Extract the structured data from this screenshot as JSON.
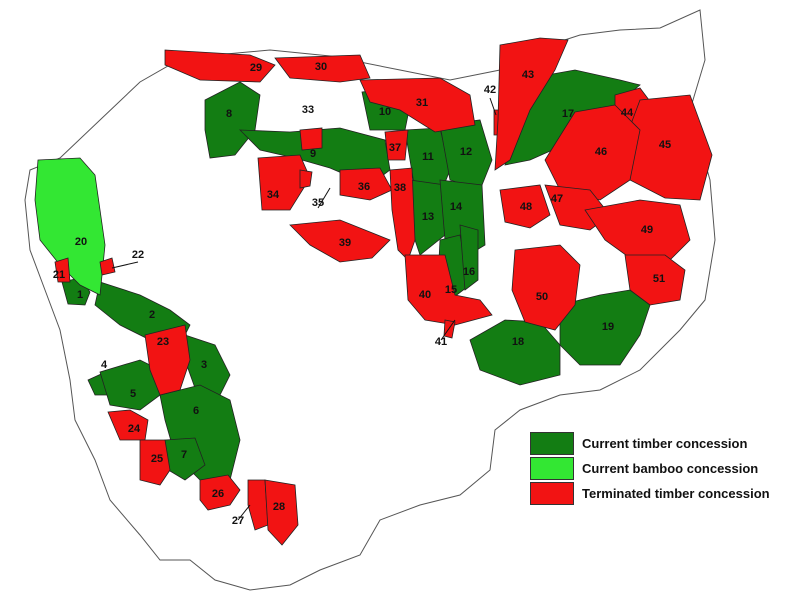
{
  "colors": {
    "current_timber": "#137d13",
    "current_bamboo": "#33e733",
    "terminated_timber": "#f21313"
  },
  "legend": {
    "items": [
      {
        "label": "Current timber concession",
        "color": "#137d13"
      },
      {
        "label": "Current bamboo concession",
        "color": "#33e733"
      },
      {
        "label": "Terminated timber concession",
        "color": "#f21313"
      }
    ]
  },
  "concessions": [
    {
      "id": "1",
      "status": "current_timber"
    },
    {
      "id": "2",
      "status": "current_timber"
    },
    {
      "id": "3",
      "status": "current_timber"
    },
    {
      "id": "4",
      "status": "current_timber"
    },
    {
      "id": "5",
      "status": "current_timber"
    },
    {
      "id": "6",
      "status": "current_timber"
    },
    {
      "id": "7",
      "status": "current_timber"
    },
    {
      "id": "8",
      "status": "current_timber"
    },
    {
      "id": "9",
      "status": "current_timber"
    },
    {
      "id": "10",
      "status": "current_timber"
    },
    {
      "id": "11",
      "status": "current_timber"
    },
    {
      "id": "12",
      "status": "current_timber"
    },
    {
      "id": "13",
      "status": "current_timber"
    },
    {
      "id": "14",
      "status": "current_timber"
    },
    {
      "id": "15",
      "status": "current_timber"
    },
    {
      "id": "16",
      "status": "current_timber"
    },
    {
      "id": "17",
      "status": "current_timber"
    },
    {
      "id": "18",
      "status": "current_timber"
    },
    {
      "id": "19",
      "status": "current_timber"
    },
    {
      "id": "20",
      "status": "current_bamboo"
    },
    {
      "id": "21",
      "status": "terminated_timber"
    },
    {
      "id": "22",
      "status": "terminated_timber"
    },
    {
      "id": "23",
      "status": "terminated_timber"
    },
    {
      "id": "24",
      "status": "terminated_timber"
    },
    {
      "id": "25",
      "status": "terminated_timber"
    },
    {
      "id": "26",
      "status": "terminated_timber"
    },
    {
      "id": "27",
      "status": "terminated_timber"
    },
    {
      "id": "28",
      "status": "terminated_timber"
    },
    {
      "id": "29",
      "status": "terminated_timber"
    },
    {
      "id": "30",
      "status": "terminated_timber"
    },
    {
      "id": "31",
      "status": "terminated_timber"
    },
    {
      "id": "33",
      "status": "terminated_timber"
    },
    {
      "id": "34",
      "status": "terminated_timber"
    },
    {
      "id": "35",
      "status": "terminated_timber"
    },
    {
      "id": "36",
      "status": "terminated_timber"
    },
    {
      "id": "37",
      "status": "terminated_timber"
    },
    {
      "id": "38",
      "status": "terminated_timber"
    },
    {
      "id": "39",
      "status": "terminated_timber"
    },
    {
      "id": "40",
      "status": "terminated_timber"
    },
    {
      "id": "41",
      "status": "terminated_timber"
    },
    {
      "id": "42",
      "status": "terminated_timber"
    },
    {
      "id": "43",
      "status": "terminated_timber"
    },
    {
      "id": "44",
      "status": "terminated_timber"
    },
    {
      "id": "45",
      "status": "terminated_timber"
    },
    {
      "id": "46",
      "status": "terminated_timber"
    },
    {
      "id": "47",
      "status": "terminated_timber"
    },
    {
      "id": "48",
      "status": "terminated_timber"
    },
    {
      "id": "49",
      "status": "terminated_timber"
    },
    {
      "id": "50",
      "status": "terminated_timber"
    },
    {
      "id": "51",
      "status": "terminated_timber"
    }
  ]
}
